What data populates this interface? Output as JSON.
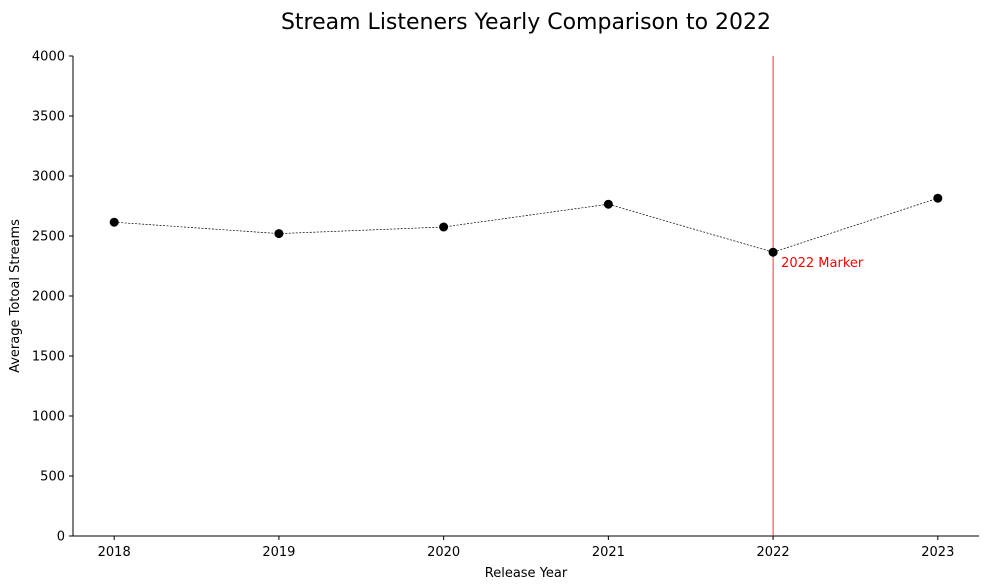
{
  "chart_data": {
    "type": "line",
    "title": "Stream Listeners Yearly Comparison to 2022",
    "xlabel": "Release Year",
    "ylabel": "Average Totoal Streams",
    "x": [
      2018,
      2019,
      2020,
      2021,
      2022,
      2023
    ],
    "series": [
      {
        "values": [
          2615,
          2520,
          2575,
          2765,
          2365,
          2815
        ],
        "color": "#000000",
        "line_style": "dashed",
        "marker": "circle"
      }
    ],
    "xlim": [
      2017.75,
      2023.25
    ],
    "ylim": [
      0,
      4000
    ],
    "yticks": [
      0,
      500,
      1000,
      1500,
      2000,
      2500,
      3000,
      3500,
      4000
    ],
    "xticks": [
      2018,
      2019,
      2020,
      2021,
      2022,
      2023
    ],
    "grid": false,
    "reference_line": {
      "x": 2022,
      "label": "2022 Marker",
      "color": "#ff0000"
    }
  }
}
